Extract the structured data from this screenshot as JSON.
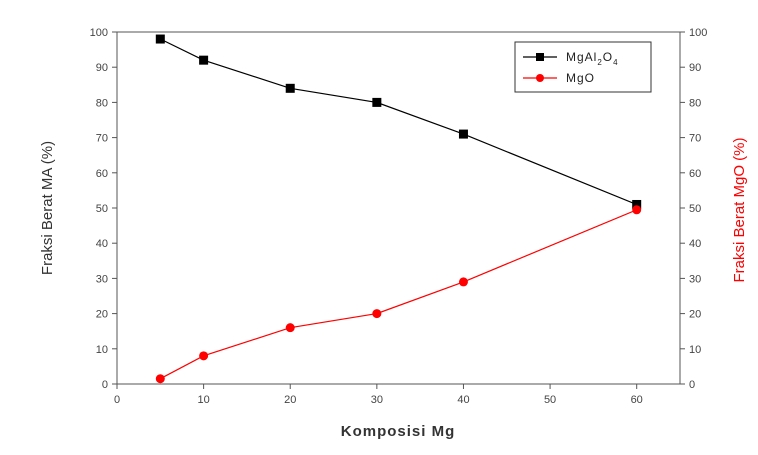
{
  "chart_data": {
    "type": "line",
    "xlabel": "Komposisi Mg",
    "ylabel": "Fraksi Berat MA (%)",
    "y2label": "Fraksi Berat MgO (%)",
    "xlim": [
      0,
      65
    ],
    "ylim": [
      0,
      100
    ],
    "y2lim": [
      0,
      100
    ],
    "x_ticks": [
      0,
      10,
      20,
      30,
      40,
      50,
      60
    ],
    "y_ticks": [
      0,
      10,
      20,
      30,
      40,
      50,
      60,
      70,
      80,
      90,
      100
    ],
    "grid": false,
    "legend_position": "top-right",
    "series": [
      {
        "name": "MgAl2O4",
        "legend_parts": [
          "MgAl",
          "2",
          "O",
          "4"
        ],
        "axis": "left",
        "color": "#000000",
        "marker": "square",
        "x": [
          5,
          10,
          20,
          30,
          40,
          60
        ],
        "values": [
          98,
          92,
          84,
          80,
          71,
          51
        ]
      },
      {
        "name": "MgO",
        "legend_parts": [
          "MgO"
        ],
        "axis": "right",
        "color": "#ff0000",
        "marker": "circle",
        "x": [
          5,
          10,
          20,
          30,
          40,
          60
        ],
        "values": [
          1.5,
          8,
          16,
          20,
          29,
          49.5
        ]
      }
    ]
  }
}
